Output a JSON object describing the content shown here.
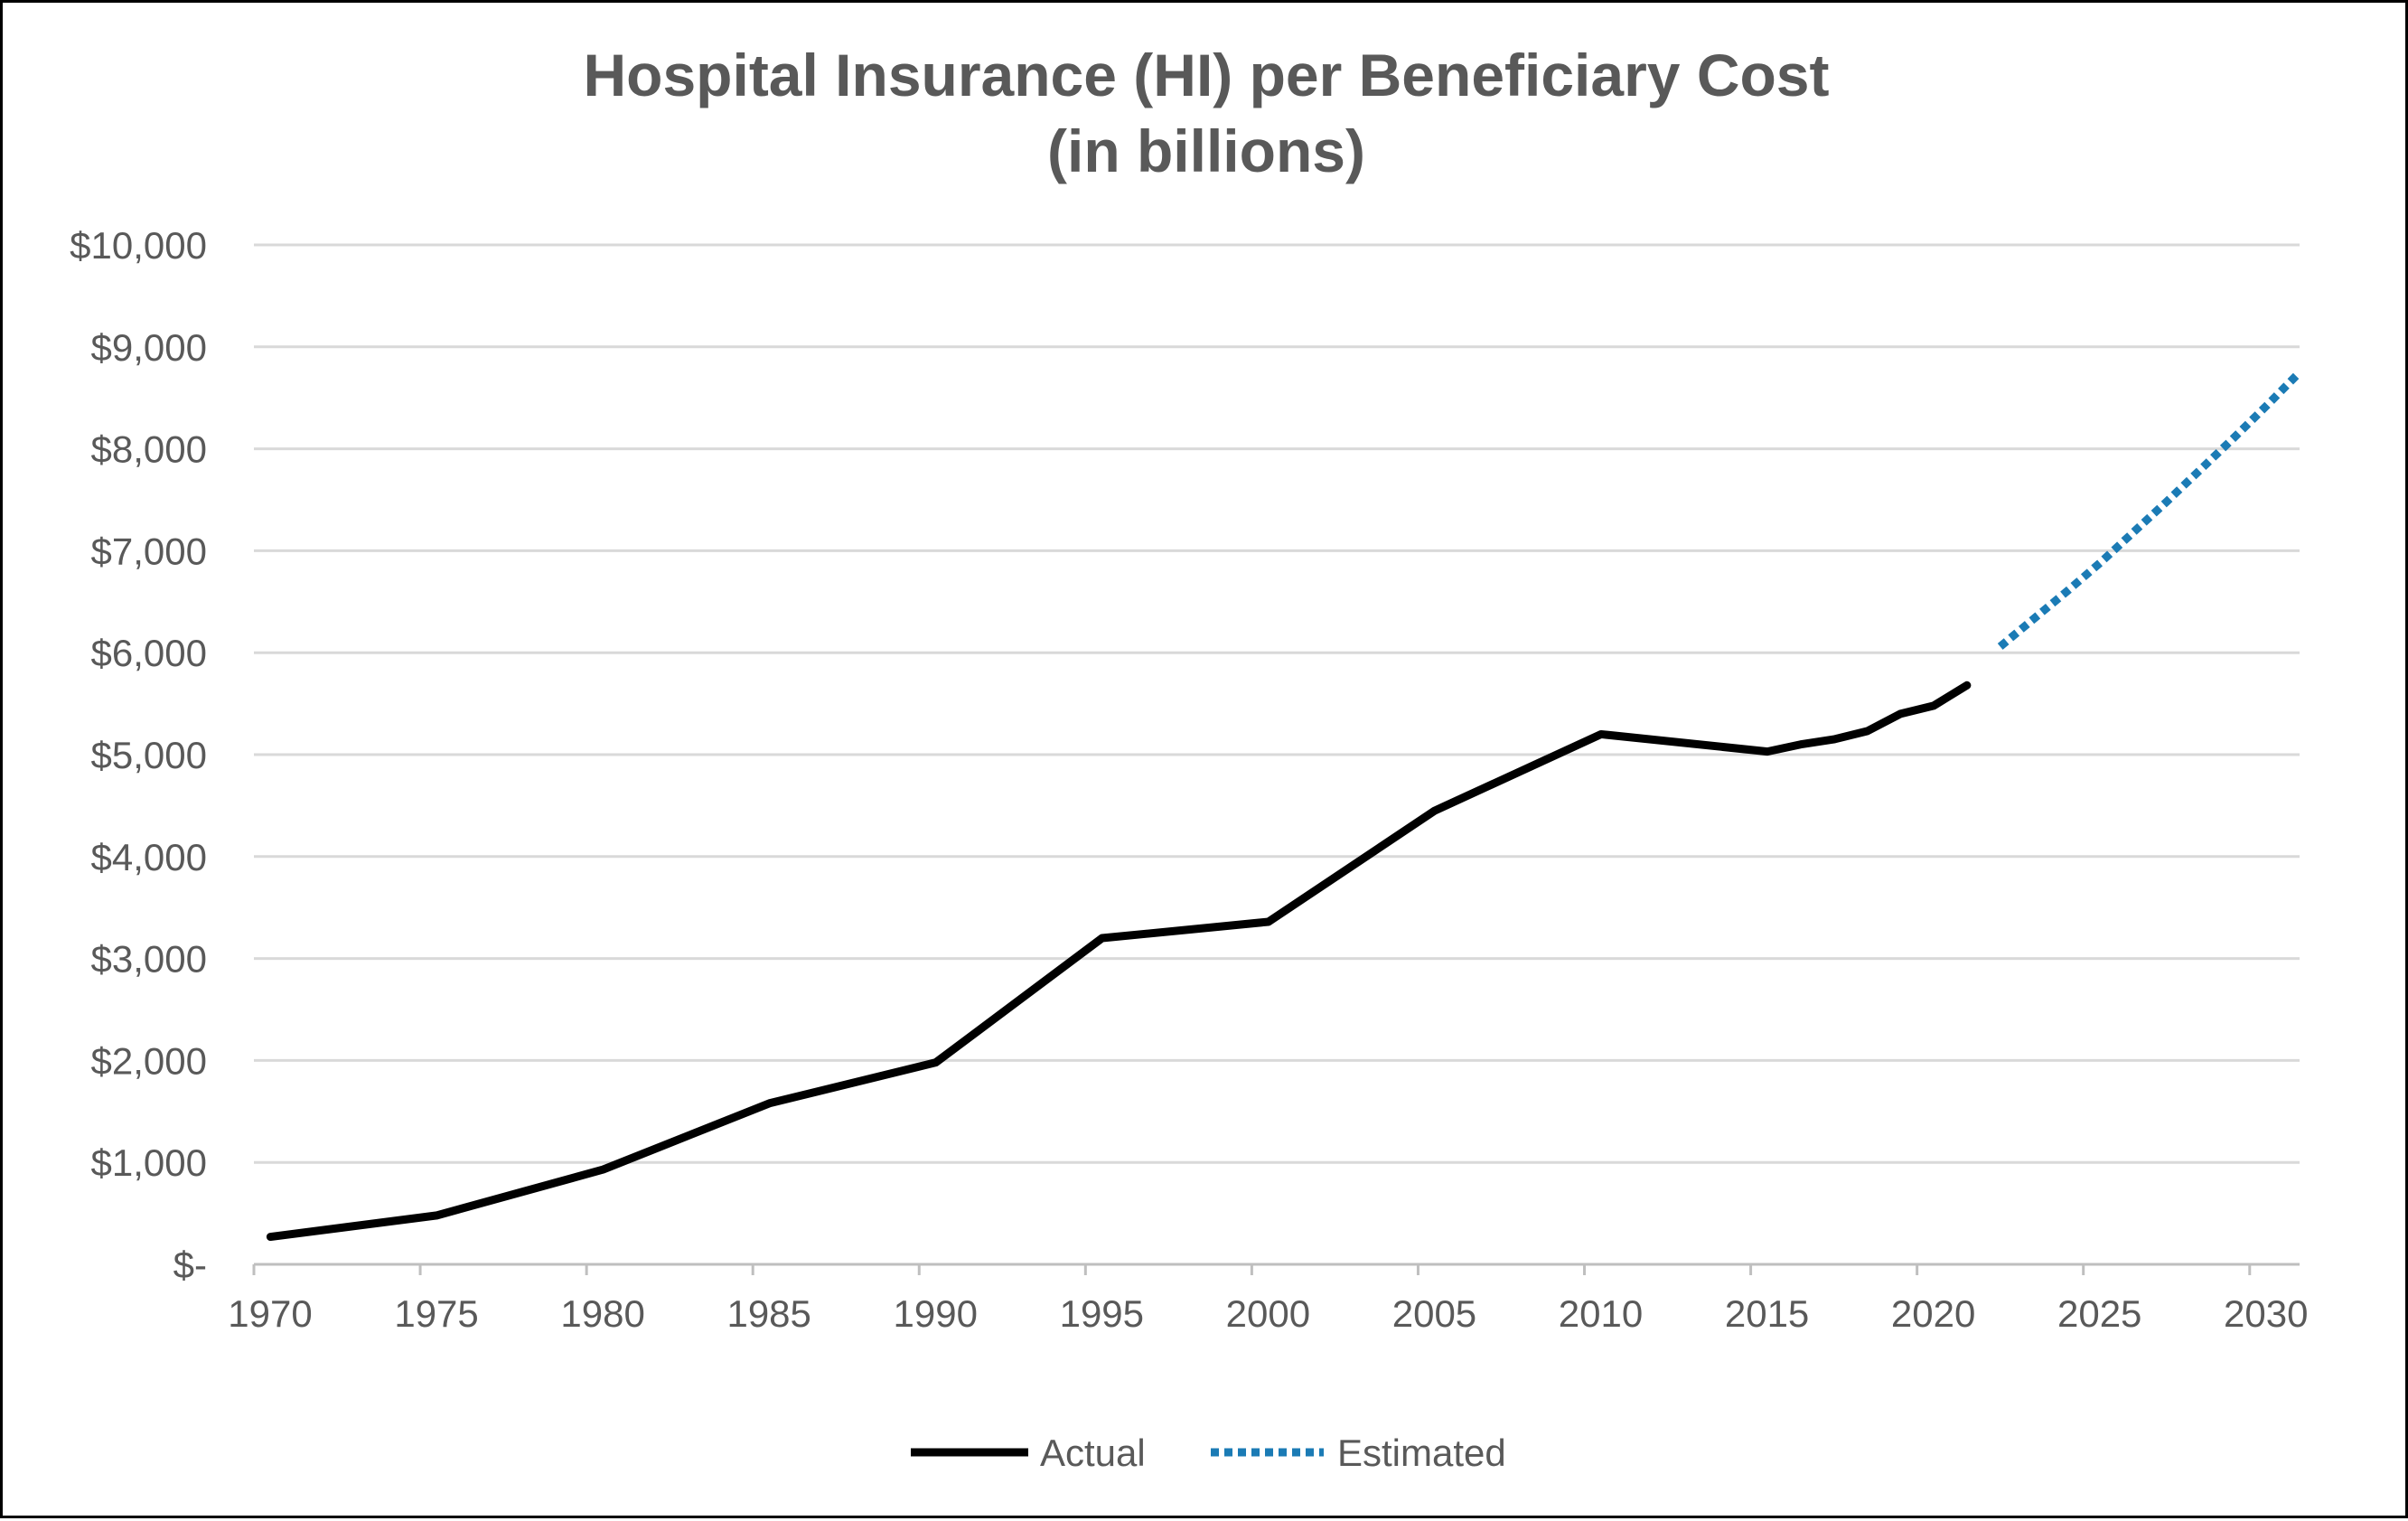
{
  "chart_data": {
    "type": "line",
    "title": "Hospital Insurance (HI) per Beneficiary Cost",
    "subtitle": "(in billions)",
    "xlabel": "",
    "ylabel": "",
    "xlim": [
      1970,
      2031.5
    ],
    "ylim": [
      0,
      10000
    ],
    "x_ticks": [
      1970,
      1975,
      1980,
      1985,
      1990,
      1995,
      2000,
      2005,
      2010,
      2015,
      2020,
      2025,
      2030
    ],
    "y_ticks": [
      {
        "value": 0,
        "label": "$-"
      },
      {
        "value": 1000,
        "label": "$1,000"
      },
      {
        "value": 2000,
        "label": "$2,000"
      },
      {
        "value": 3000,
        "label": "$3,000"
      },
      {
        "value": 4000,
        "label": "$4,000"
      },
      {
        "value": 5000,
        "label": "$5,000"
      },
      {
        "value": 6000,
        "label": "$6,000"
      },
      {
        "value": 7000,
        "label": "$7,000"
      },
      {
        "value": 8000,
        "label": "$8,000"
      },
      {
        "value": 9000,
        "label": "$9,000"
      },
      {
        "value": 10000,
        "label": "$10,000"
      }
    ],
    "grid": true,
    "legend_position": "bottom",
    "series": [
      {
        "name": "Actual",
        "style": "solid",
        "color": "#000000",
        "x": [
          1970,
          1975,
          1980,
          1985,
          1990,
          1995,
          2000,
          2005,
          2010,
          2015,
          2016,
          2017,
          2018,
          2019,
          2020,
          2021
        ],
        "values": [
          270,
          480,
          930,
          1580,
          1980,
          3200,
          3360,
          4450,
          5200,
          5030,
          5100,
          5150,
          5230,
          5400,
          5480,
          5680
        ]
      },
      {
        "name": "Estimated",
        "style": "dotted",
        "color": "#1B7BB5",
        "x": [
          2022,
          2023,
          2024,
          2025,
          2026,
          2027,
          2028,
          2029,
          2030,
          2031
        ],
        "values": [
          6060,
          6330,
          6600,
          6880,
          7180,
          7480,
          7790,
          8100,
          8420,
          8750
        ]
      }
    ]
  }
}
